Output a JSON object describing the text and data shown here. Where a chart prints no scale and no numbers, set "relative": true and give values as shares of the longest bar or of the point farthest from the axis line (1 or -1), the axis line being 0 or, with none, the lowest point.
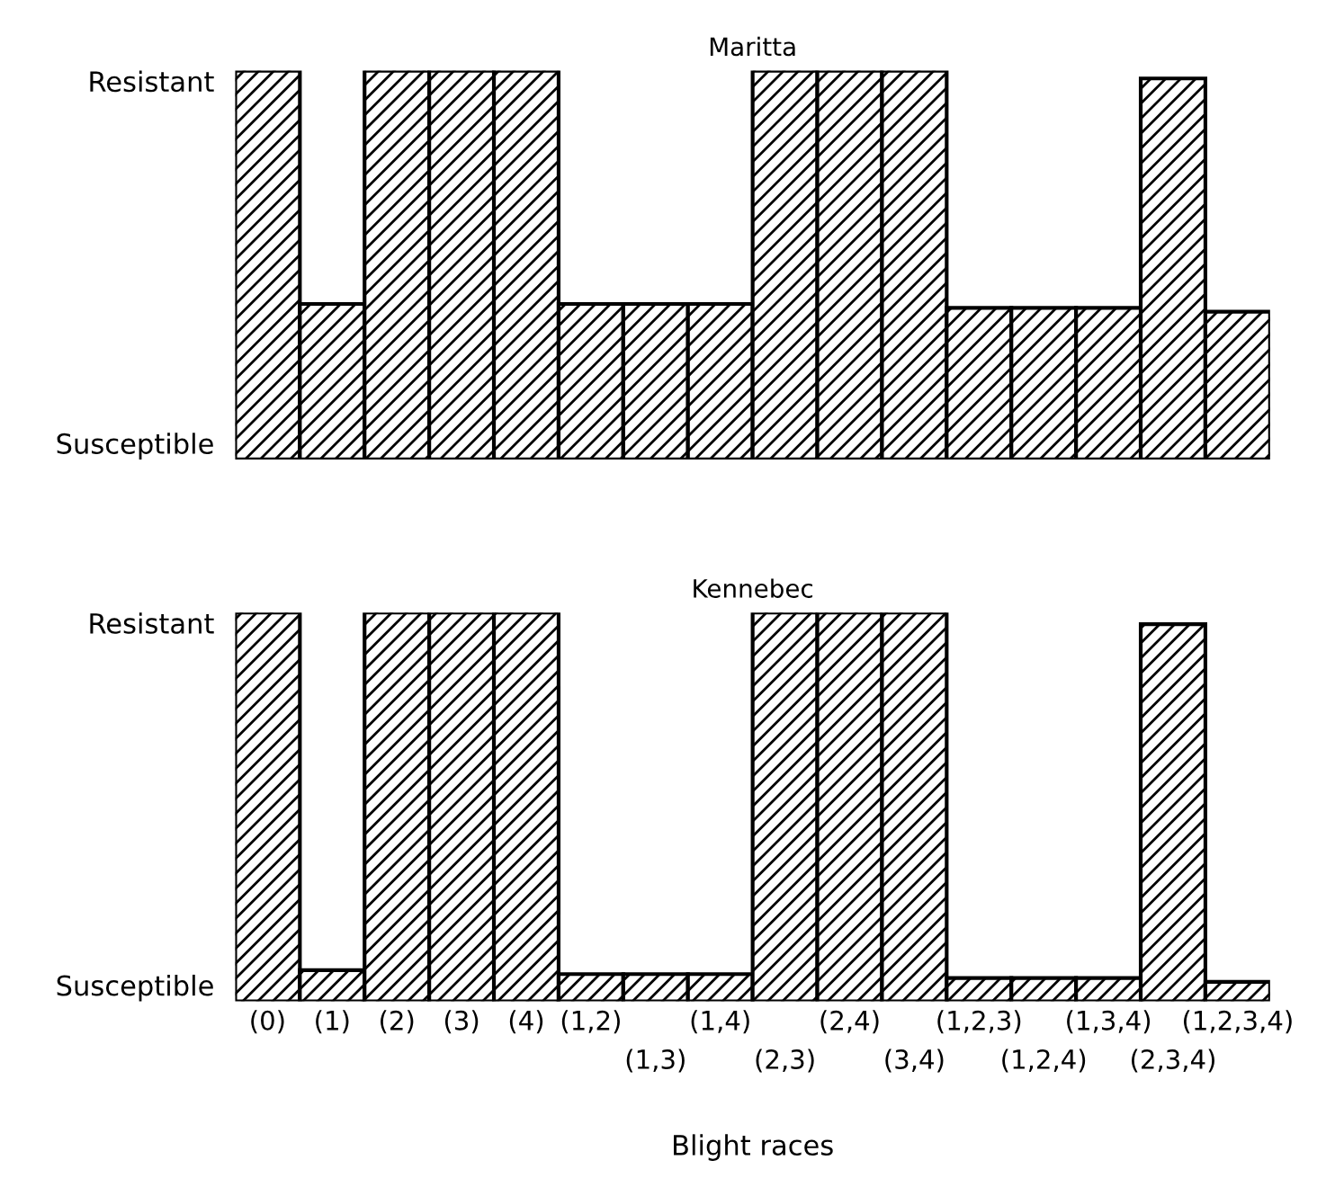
{
  "chart_data": [
    {
      "type": "bar",
      "title": "Maritta",
      "categories": [
        null,
        null,
        null,
        null,
        null,
        null,
        null,
        null,
        null,
        null,
        null,
        null,
        null,
        null,
        null,
        null
      ],
      "values": [
        1,
        0.4,
        1,
        1,
        1,
        0.4,
        0.4,
        0.4,
        1,
        1,
        1,
        0.39,
        0.39,
        0.39,
        0.98,
        0.38
      ],
      "color": "#000000",
      "relative": true,
      "annotations": [
        "Resistant",
        "Susceptible"
      ]
    },
    {
      "type": "bar",
      "title": "Kennebec",
      "xlabel": "Blight races",
      "categories": [
        "(0)",
        "(1)",
        "(2)",
        "(3)",
        "(4)",
        "(1,2)",
        "(1,3)",
        "(1,4)",
        "(2,3)",
        "(2,4)",
        "(3,4)",
        "(1,2,3)",
        "(1,2,4)",
        "(1,3,4)",
        "(2,3,4)",
        "(1,2,3,4)"
      ],
      "values": [
        1,
        0.08,
        1,
        1,
        1,
        0.07,
        0.07,
        0.07,
        1,
        1,
        1,
        0.06,
        0.06,
        0.06,
        0.97,
        0.05
      ],
      "color": "#000000",
      "relative": true,
      "annotations": [
        "Resistant",
        "Susceptible"
      ]
    }
  ]
}
